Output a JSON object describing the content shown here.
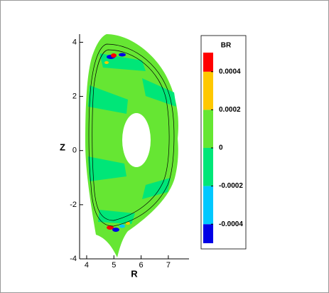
{
  "chart_data": {
    "type": "contour",
    "xlabel": "R",
    "ylabel": "Z",
    "xlim": [
      3.74,
      7.76
    ],
    "ylim": [
      -4,
      4.3
    ],
    "xticks": [
      4,
      5,
      6,
      7
    ],
    "yticks": [
      -4,
      -2,
      0,
      2,
      4
    ],
    "colorbar": {
      "title": "BR",
      "levels": [
        -0.0005,
        -0.0004,
        -0.0002,
        0,
        0.0002,
        0.0004,
        0.0005
      ],
      "colors": [
        "#0000e6",
        "#00c8ff",
        "#00e678",
        "#66e633",
        "#ffc800",
        "#ff0000"
      ],
      "ticks": [
        -0.0004,
        -0.0002,
        0,
        0.0002,
        0.0004
      ]
    }
  }
}
